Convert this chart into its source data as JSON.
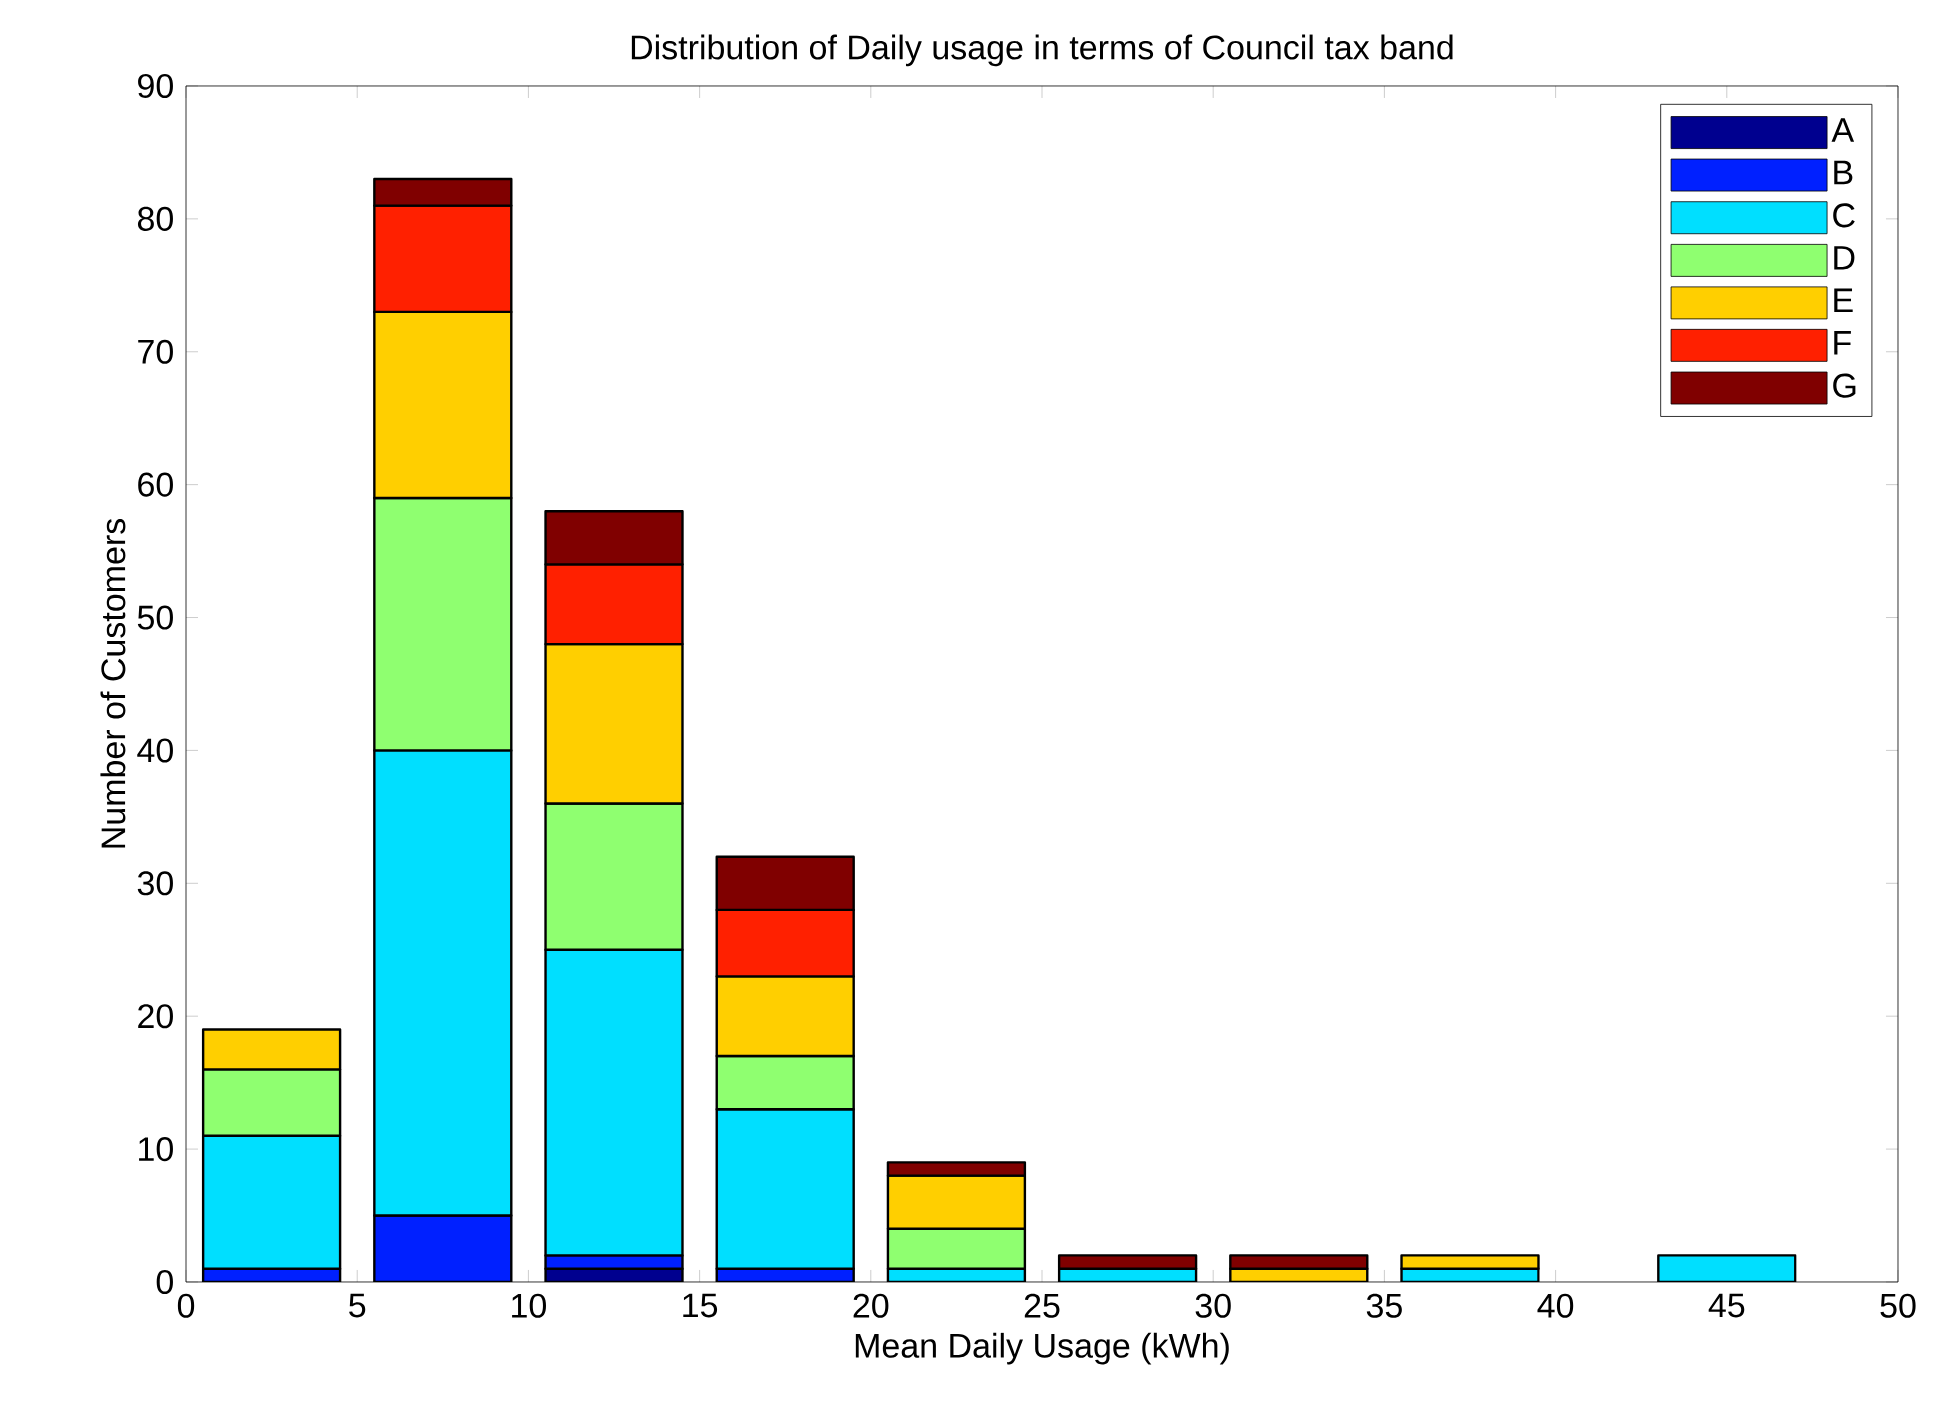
{
  "chart_data": {
    "type": "bar",
    "stacked": true,
    "title": "Distribution of Daily usage in terms of Council tax band",
    "xlabel": "Mean Daily Usage (kWh)",
    "ylabel": "Number of Customers",
    "x": [
      2.5,
      7.5,
      12.5,
      17.5,
      22.5,
      27.5,
      32.5,
      37.5,
      45
    ],
    "series": [
      {
        "name": "A",
        "color": "#00008f",
        "values": [
          0,
          0,
          1,
          0,
          0,
          0,
          0,
          0,
          0
        ]
      },
      {
        "name": "B",
        "color": "#0020ff",
        "values": [
          1,
          5,
          1,
          1,
          0,
          0,
          0,
          0,
          0
        ]
      },
      {
        "name": "C",
        "color": "#00dfff",
        "values": [
          10,
          35,
          23,
          12,
          1,
          1,
          0,
          1,
          2
        ]
      },
      {
        "name": "D",
        "color": "#8fff70",
        "values": [
          5,
          19,
          11,
          4,
          3,
          0,
          0,
          0,
          0
        ]
      },
      {
        "name": "E",
        "color": "#ffcf00",
        "values": [
          3,
          14,
          12,
          6,
          4,
          0,
          1,
          1,
          0
        ]
      },
      {
        "name": "F",
        "color": "#ff2000",
        "values": [
          0,
          8,
          6,
          5,
          0,
          0,
          0,
          0,
          0
        ]
      },
      {
        "name": "G",
        "color": "#800000",
        "values": [
          0,
          2,
          4,
          4,
          1,
          1,
          1,
          0,
          0
        ]
      }
    ],
    "xlim": [
      0,
      50
    ],
    "xticks": [
      0,
      5,
      10,
      15,
      20,
      25,
      30,
      35,
      40,
      45,
      50
    ],
    "ylim": [
      0,
      90
    ],
    "yticks": [
      0,
      10,
      20,
      30,
      40,
      50,
      60,
      70,
      80,
      90
    ],
    "grid": false,
    "legend": "top right"
  }
}
